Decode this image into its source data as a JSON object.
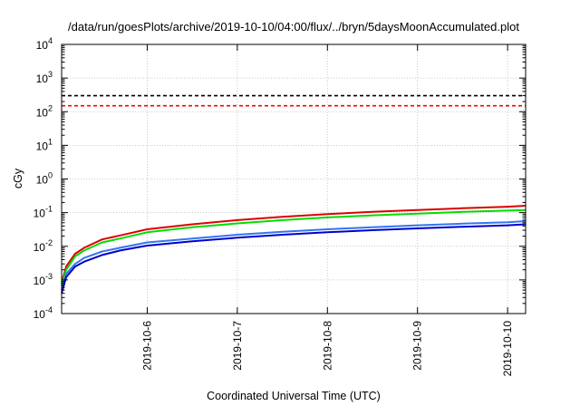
{
  "chart_data": {
    "type": "line",
    "title": "/data/run/goesPlots/archive/2019-10-10/04:00/flux/../bryn/5daysMoonAccumulated.plot",
    "xlabel": "Coordinated Universal Time (UTC)",
    "ylabel": "cGy",
    "yscale": "log",
    "ylim_exponents": [
      -4,
      4
    ],
    "yticks": [
      {
        "base": "10",
        "exp": "-4"
      },
      {
        "base": "10",
        "exp": "-3"
      },
      {
        "base": "10",
        "exp": "-2"
      },
      {
        "base": "10",
        "exp": "-1"
      },
      {
        "base": "10",
        "exp": "0"
      },
      {
        "base": "10",
        "exp": "1"
      },
      {
        "base": "10",
        "exp": "2"
      },
      {
        "base": "10",
        "exp": "3"
      },
      {
        "base": "10",
        "exp": "4"
      }
    ],
    "xlim_days": [
      5.05,
      10.2
    ],
    "xticks": [
      {
        "label": "2019-10-6",
        "day": 6
      },
      {
        "label": "2019-10-7",
        "day": 7
      },
      {
        "label": "2019-10-8",
        "day": 8
      },
      {
        "label": "2019-10-9",
        "day": 9
      },
      {
        "label": "2019-10-10",
        "day": 10
      }
    ],
    "grid": true,
    "thresholds": [
      {
        "value": 300,
        "color": "#000000",
        "dashed": true
      },
      {
        "value": 150,
        "color": "#ff0000",
        "dashed": true
      }
    ],
    "series": [
      {
        "color": "#dd0000",
        "x": [
          5.05,
          5.1,
          5.2,
          5.3,
          5.5,
          5.7,
          6.0,
          6.5,
          7.0,
          7.5,
          8.0,
          8.5,
          9.0,
          9.5,
          10.0,
          10.2
        ],
        "y": [
          0.0008,
          0.0025,
          0.006,
          0.009,
          0.016,
          0.021,
          0.032,
          0.045,
          0.06,
          0.075,
          0.09,
          0.105,
          0.12,
          0.135,
          0.15,
          0.16
        ]
      },
      {
        "color": "#00dd00",
        "x": [
          5.05,
          5.1,
          5.2,
          5.3,
          5.5,
          5.7,
          6.0,
          6.5,
          7.0,
          7.5,
          8.0,
          8.5,
          9.0,
          9.5,
          10.0,
          10.2
        ],
        "y": [
          0.0007,
          0.002,
          0.005,
          0.0075,
          0.013,
          0.017,
          0.026,
          0.037,
          0.048,
          0.06,
          0.072,
          0.083,
          0.093,
          0.105,
          0.115,
          0.12
        ]
      },
      {
        "color": "#3377ee",
        "x": [
          5.05,
          5.1,
          5.2,
          5.3,
          5.5,
          5.7,
          6.0,
          6.5,
          7.0,
          7.5,
          8.0,
          8.5,
          9.0,
          9.5,
          10.0,
          10.2
        ],
        "y": [
          0.0005,
          0.0015,
          0.003,
          0.0045,
          0.007,
          0.009,
          0.013,
          0.017,
          0.022,
          0.027,
          0.032,
          0.037,
          0.042,
          0.047,
          0.052,
          0.056
        ]
      },
      {
        "color": "#0000cc",
        "x": [
          5.05,
          5.1,
          5.2,
          5.3,
          5.5,
          5.7,
          6.0,
          6.5,
          7.0,
          7.5,
          8.0,
          8.5,
          9.0,
          9.5,
          10.0,
          10.2
        ],
        "y": [
          0.0004,
          0.0012,
          0.0025,
          0.0035,
          0.0055,
          0.0075,
          0.0105,
          0.014,
          0.018,
          0.022,
          0.026,
          0.03,
          0.034,
          0.038,
          0.042,
          0.045
        ]
      }
    ]
  }
}
